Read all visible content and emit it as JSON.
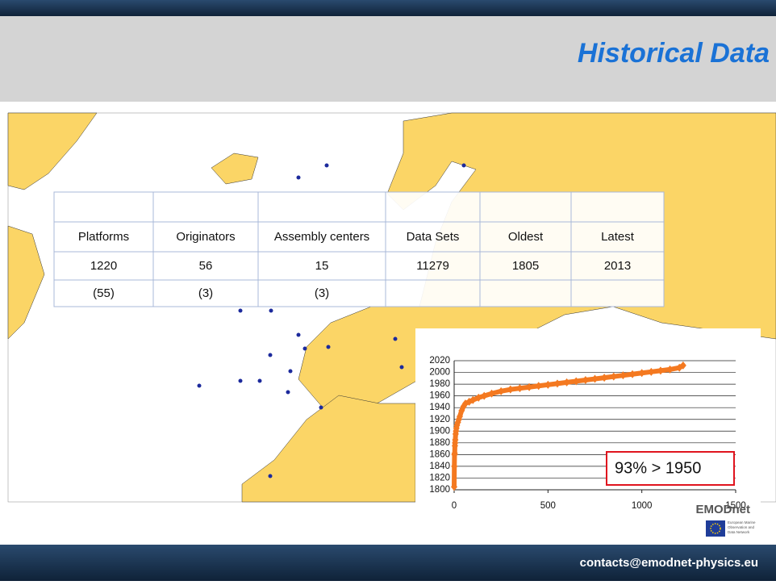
{
  "header": {
    "title": "Historical Data"
  },
  "table": {
    "headers": [
      "Platforms",
      "Originators",
      "Assembly centers",
      "Data Sets",
      "Oldest",
      "Latest"
    ],
    "values": [
      1220,
      56,
      15,
      11279,
      1805,
      2013
    ],
    "sub": [
      "(55)",
      "(3)",
      "(3)"
    ]
  },
  "chart_data": {
    "type": "scatter",
    "x": [
      0,
      1,
      2,
      3,
      4,
      5,
      6,
      8,
      10,
      12,
      15,
      20,
      25,
      30,
      40,
      50,
      60,
      80,
      100,
      130,
      160,
      200,
      250,
      300,
      350,
      400,
      450,
      500,
      550,
      600,
      650,
      700,
      750,
      800,
      850,
      900,
      950,
      1000,
      1050,
      1100,
      1150,
      1200,
      1220
    ],
    "values": [
      1805,
      1840,
      1860,
      1862,
      1875,
      1880,
      1885,
      1895,
      1900,
      1905,
      1910,
      1915,
      1920,
      1925,
      1935,
      1942,
      1947,
      1950,
      1953,
      1957,
      1960,
      1964,
      1968,
      1971,
      1973,
      1975,
      1977,
      1979,
      1981,
      1983,
      1985,
      1987,
      1989,
      1991,
      1993,
      1995,
      1997,
      1999,
      2001,
      2003,
      2005,
      2008,
      2012
    ],
    "color": "#f47920",
    "xlim": [
      0,
      1500
    ],
    "xticks": [
      0,
      500,
      1000,
      1500
    ],
    "ylim": [
      1800,
      2020
    ],
    "yticks": [
      1800,
      1820,
      1840,
      1860,
      1880,
      1900,
      1920,
      1940,
      1960,
      1980,
      2000,
      2020
    ],
    "grid": true,
    "annotation": "93% > 1950"
  },
  "logo": {
    "name": "EMODnet",
    "caption": [
      "European Marine",
      "Observation and",
      "Data Network"
    ]
  },
  "footer": {
    "contact": "contacts@emodnet-physics.eu"
  }
}
